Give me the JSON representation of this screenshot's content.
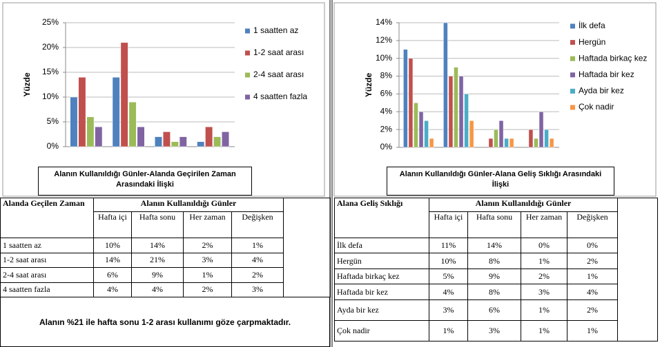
{
  "chart_data": [
    {
      "type": "bar",
      "title": "Alanın Kullanıldığı Günler-Alanda Geçirilen Zaman Arasındaki İlişki",
      "ylabel": "Yüzde",
      "categories": [
        null,
        null,
        null,
        null
      ],
      "series": [
        {
          "name": "1 saatten az",
          "color": "#4f81bd",
          "values": [
            10,
            14,
            2,
            1
          ]
        },
        {
          "name": "1-2 saat arası",
          "color": "#c0504d",
          "values": [
            14,
            21,
            3,
            4
          ]
        },
        {
          "name": "2-4 saat arası",
          "color": "#9bbb59",
          "values": [
            6,
            9,
            1,
            2
          ]
        },
        {
          "name": "4 saatten fazla",
          "color": "#8064a2",
          "values": [
            4,
            4,
            2,
            3
          ]
        }
      ],
      "ylim": [
        0,
        25
      ],
      "yticks": [
        {
          "value": 0,
          "label": "0%"
        },
        {
          "value": 5,
          "label": "5%"
        },
        {
          "value": 10,
          "label": "10%"
        },
        {
          "value": 15,
          "label": "15%"
        },
        {
          "value": 20,
          "label": "20%"
        },
        {
          "value": 25,
          "label": "25%"
        }
      ],
      "grid": true,
      "legend": "right"
    },
    {
      "type": "bar",
      "title": "Alanın Kullanıldığı Günler-Alana Geliş Sıklığı Arasındaki İlişki",
      "ylabel": "Yüzde",
      "categories": [
        null,
        null,
        null,
        null
      ],
      "series": [
        {
          "name": "İlk defa",
          "color": "#4f81bd",
          "values": [
            11,
            14,
            0,
            0
          ]
        },
        {
          "name": "Hergün",
          "color": "#c0504d",
          "values": [
            10,
            8,
            1,
            2
          ]
        },
        {
          "name": "Haftada birkaç kez",
          "color": "#9bbb59",
          "values": [
            5,
            9,
            2,
            1
          ]
        },
        {
          "name": "Haftada bir kez",
          "color": "#8064a2",
          "values": [
            4,
            8,
            3,
            4
          ]
        },
        {
          "name": "Ayda bir kez",
          "color": "#4bacc6",
          "values": [
            3,
            6,
            1,
            2
          ]
        },
        {
          "name": "Çok nadir",
          "color": "#f79646",
          "values": [
            1,
            3,
            1,
            1
          ]
        }
      ],
      "ylim": [
        0,
        14
      ],
      "yticks": [
        {
          "value": 0,
          "label": "0%"
        },
        {
          "value": 2,
          "label": "2%"
        },
        {
          "value": 4,
          "label": "4%"
        },
        {
          "value": 6,
          "label": "6%"
        },
        {
          "value": 8,
          "label": "8%"
        },
        {
          "value": 10,
          "label": "10%"
        },
        {
          "value": 12,
          "label": "12%"
        },
        {
          "value": 14,
          "label": "14%"
        }
      ],
      "grid": true,
      "legend": "right"
    }
  ],
  "tables": [
    {
      "row_header": "Alanda Geçilen Zaman",
      "group_header": "Alanın Kullanıldığı Günler",
      "columns": [
        "Hafta içi",
        "Hafta sonu",
        "Her zaman",
        "Değişken"
      ],
      "rows": [
        {
          "label": "1 saatten az",
          "cells": [
            "10%",
            "14%",
            "2%",
            "1%"
          ]
        },
        {
          "label": "1-2 saat arası",
          "cells": [
            "14%",
            "21%",
            "3%",
            "4%"
          ]
        },
        {
          "label": "2-4 saat arası",
          "cells": [
            "6%",
            "9%",
            "1%",
            "2%"
          ]
        },
        {
          "label": "4 saatten fazla",
          "cells": [
            "4%",
            "4%",
            "2%",
            "3%"
          ]
        }
      ]
    },
    {
      "row_header": "Alana Geliş Sıklığı",
      "group_header": "Alanın Kullanıldığı Günler",
      "columns": [
        "Hafta içi",
        "Hafta sonu",
        "Her zaman",
        "Değişken"
      ],
      "rows": [
        {
          "label": "İlk defa",
          "cells": [
            "11%",
            "14%",
            "0%",
            "0%"
          ]
        },
        {
          "label": "Hergün",
          "cells": [
            "10%",
            "8%",
            "1%",
            "2%"
          ]
        },
        {
          "label": "Haftada birkaç kez",
          "cells": [
            "5%",
            "9%",
            "2%",
            "1%"
          ]
        },
        {
          "label": "Haftada bir kez",
          "cells": [
            "4%",
            "8%",
            "3%",
            "4%"
          ]
        },
        {
          "label": "Ayda bir kez",
          "cells": [
            "3%",
            "6%",
            "1%",
            "2%"
          ]
        },
        {
          "label": "Çok nadir",
          "cells": [
            "1%",
            "3%",
            "1%",
            "1%"
          ]
        }
      ]
    }
  ],
  "note": "Alanın %21 ile hafta sonu 1-2 arası kullanımı göze çarpmaktadır."
}
